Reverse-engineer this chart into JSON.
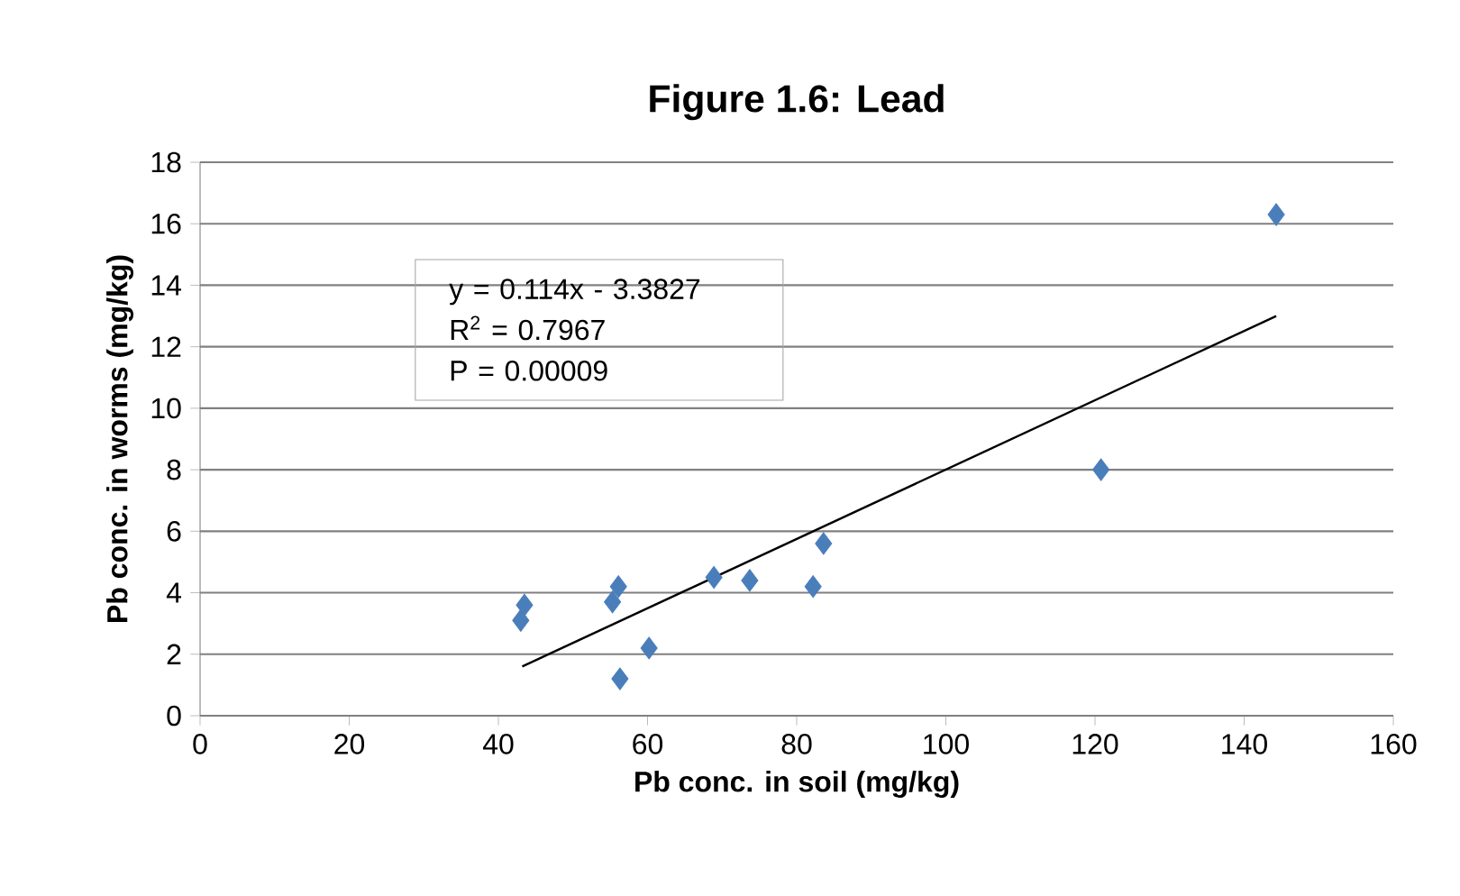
{
  "chart_data": {
    "type": "scatter",
    "title": "Figure 1.6: Lead",
    "xlabel": "Pb conc. in soil (mg/kg)",
    "ylabel": "Pb conc. in worms (mg/kg)",
    "xlim": [
      0,
      160
    ],
    "xticks": [
      0,
      20,
      40,
      60,
      80,
      100,
      120,
      140,
      160
    ],
    "ylim": [
      0,
      18
    ],
    "yticks": [
      0,
      2,
      4,
      6,
      8,
      10,
      12,
      14,
      16,
      18
    ],
    "grid": "y",
    "marker": "diamond",
    "annotations": [
      "y = 0.114x - 3.3827",
      "R$^{2}$ = 0.7967",
      "P = 0.00009"
    ],
    "series": [
      {
        "color": "#4a7ebb",
        "x": [
          43.0,
          43.5,
          55.3,
          56.1,
          56.3,
          60.2,
          68.9,
          73.7,
          82.2,
          83.6,
          120.8,
          144.3
        ],
        "values": [
          3.1,
          3.6,
          3.7,
          4.2,
          1.2,
          2.2,
          4.5,
          4.4,
          4.2,
          5.6,
          8.0,
          16.3
        ]
      },
      {
        "type": "line",
        "color": "#000000",
        "marker": "none",
        "line_style": "solid",
        "x": [
          43.2,
          144.3
        ],
        "values": [
          1.6,
          13.0
        ]
      }
    ]
  }
}
